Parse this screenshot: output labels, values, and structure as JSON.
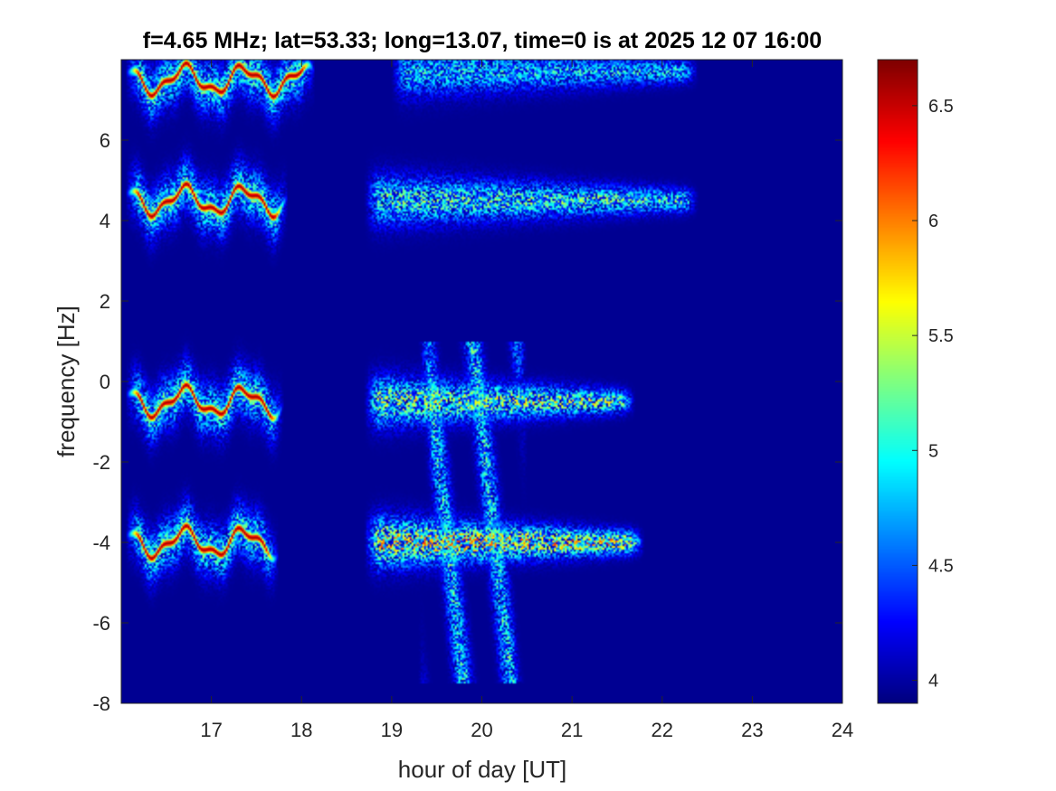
{
  "chart_data": {
    "type": "heatmap",
    "title": "f=4.65 MHz;  lat=53.33; long=13.07, time=0 is at 2025 12 07 16:00",
    "xlabel": "hour of day [UT]",
    "ylabel": "frequency [Hz]",
    "xlim": [
      16,
      24
    ],
    "ylim": [
      -8,
      8
    ],
    "xticks": [
      17,
      18,
      19,
      20,
      21,
      22,
      23,
      24
    ],
    "yticks": [
      -8,
      -6,
      -4,
      -2,
      0,
      2,
      4,
      6
    ],
    "colormap": "jet",
    "colorbar": {
      "limits": [
        3.9,
        6.7
      ],
      "ticks": [
        4,
        4.5,
        5,
        5.5,
        6,
        6.5
      ]
    },
    "background_value": 3.95,
    "features": [
      {
        "kind": "wavy_trace",
        "t_range": [
          16.05,
          18.15
        ],
        "center_hz": 7.5,
        "amplitude_hz": 0.3,
        "peak": 6.6
      },
      {
        "kind": "wavy_trace",
        "t_range": [
          16.05,
          17.85
        ],
        "center_hz": 4.5,
        "amplitude_hz": 0.3,
        "peak": 6.6
      },
      {
        "kind": "wavy_trace",
        "t_range": [
          16.05,
          17.8
        ],
        "center_hz": -0.5,
        "amplitude_hz": 0.3,
        "peak": 6.6
      },
      {
        "kind": "wavy_trace",
        "t_range": [
          16.05,
          17.75
        ],
        "center_hz": -4.0,
        "amplitude_hz": 0.3,
        "peak": 6.6
      },
      {
        "kind": "diffuse_band",
        "t_range": [
          19.0,
          22.4
        ],
        "center_hz": 7.7,
        "peak": 5.3
      },
      {
        "kind": "diffuse_band",
        "t_range": [
          18.7,
          22.4
        ],
        "center_hz": 4.5,
        "peak": 5.6
      },
      {
        "kind": "diffuse_band",
        "t_range": [
          18.7,
          21.7
        ],
        "center_hz": -0.5,
        "peak": 5.9
      },
      {
        "kind": "diffuse_band",
        "t_range": [
          18.7,
          21.8
        ],
        "center_hz": -4.0,
        "peak": 6.3
      },
      {
        "kind": "streaks",
        "t_range": [
          19.3,
          20.5
        ],
        "hz_range": [
          -7.5,
          1.0
        ],
        "peak": 5.6
      }
    ]
  }
}
